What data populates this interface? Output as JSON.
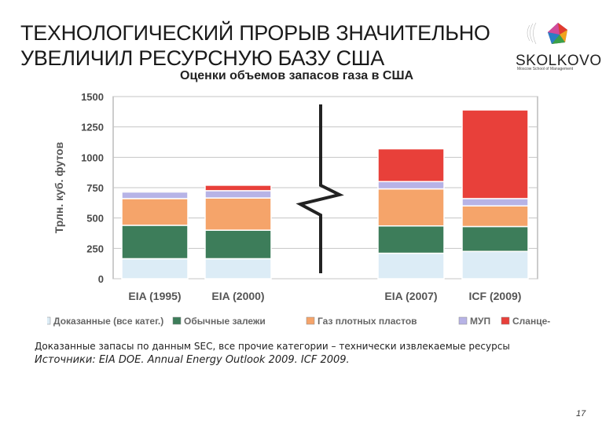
{
  "slide": {
    "title_line1": "ТЕХНОЛОГИЧЕСКИЙ ПРОРЫВ ЗНАЧИТЕЛЬНО",
    "title_line2": "УВЕЛИЧИЛ РЕСУРСНУЮ БАЗУ США",
    "logo_text": "SKOLKOVO",
    "logo_tagline": "Moscow School of Management",
    "note": "Доказанные запасы по данным SEC, все прочие категории – технически извлекаемые ресурсы",
    "source": "Источники: EIA DOE. Annual Energy Outlook 2009. ICF 2009.",
    "page_number": "17"
  },
  "chart_data": {
    "type": "bar",
    "stacked": true,
    "title": "Оценки объемов запасов газа в США",
    "ylabel": "Трлн. куб. футов",
    "xlabel": "",
    "ylim": [
      0,
      1500
    ],
    "yticks": [
      "0",
      "250",
      "500",
      "750",
      "1000",
      "1250",
      "1500"
    ],
    "grid": true,
    "axis_break_between": [
      "EIA (2000)",
      "EIA (2007)"
    ],
    "legend_position": "bottom",
    "categories": [
      "EIA (1995)",
      "EIA (2000)",
      "EIA (2007)",
      "ICF (2009)"
    ],
    "series": [
      {
        "name": "Доказанные (все катег.)",
        "color": "#dcecf6",
        "values": [
          165,
          165,
          210,
          225
        ]
      },
      {
        "name": "Обычные залежи",
        "color": "#3d7d5a",
        "values": [
          275,
          235,
          225,
          205
        ]
      },
      {
        "name": "Газ плотных пластов",
        "color": "#f5a46a",
        "values": [
          220,
          265,
          305,
          170
        ]
      },
      {
        "name": "МУП",
        "color": "#b7b3e6",
        "values": [
          55,
          60,
          60,
          60
        ]
      },
      {
        "name": "Сланце-",
        "color": "#e8403a",
        "values": [
          10,
          45,
          270,
          730
        ]
      }
    ]
  }
}
